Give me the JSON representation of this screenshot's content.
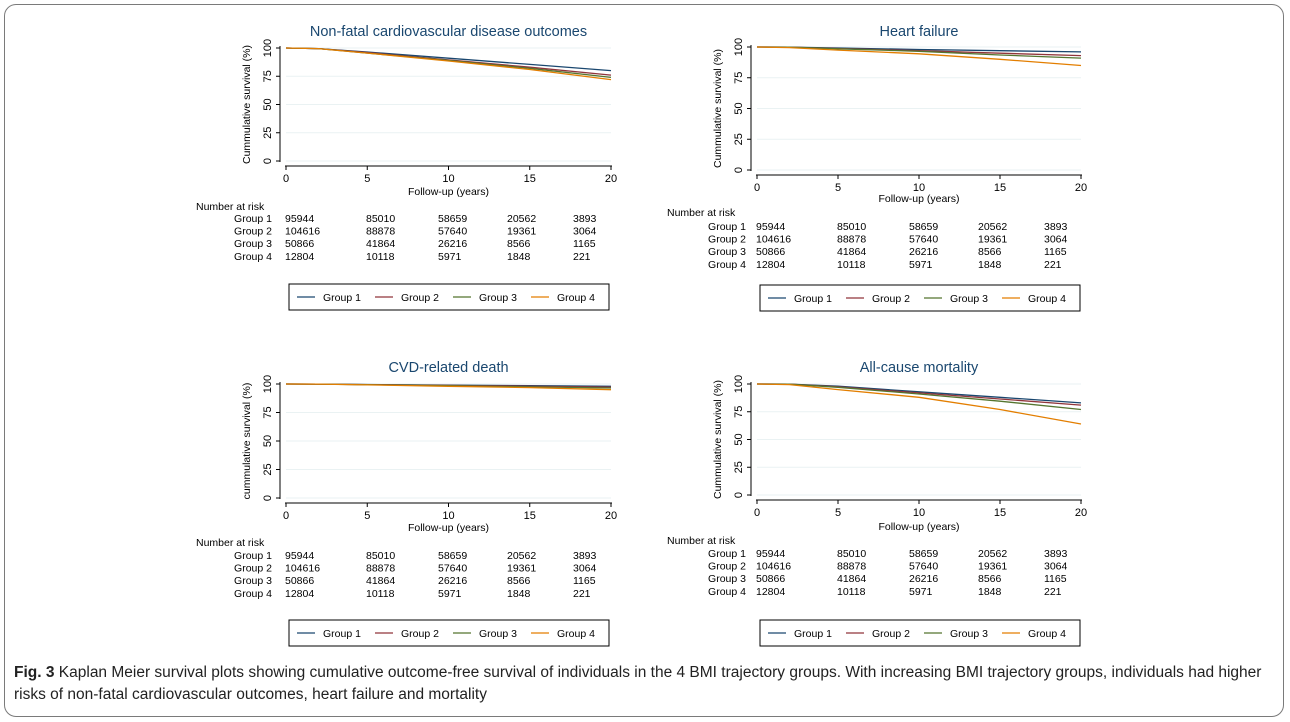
{
  "caption": {
    "label": "Fig. 3",
    "text": " Kaplan Meier survival plots showing cumulative outcome-free survival of individuals in the 4 BMI trajectory groups. With increasing BMI trajectory groups, individuals had higher risks of non-fatal cardiovascular outcomes, heart failure and mortality"
  },
  "colors": {
    "Group 1": "#1a476f",
    "Group 2": "#90353b",
    "Group 3": "#55752f",
    "Group 4": "#e37e00",
    "title": "#1a476f"
  },
  "chart_data": [
    {
      "type": "line",
      "title": "Non-fatal cardiovascular disease outcomes",
      "xlabel": "Follow-up (years)",
      "ylabel": "Cummulative survival (%)",
      "xlim": [
        0,
        20
      ],
      "ylim": [
        0,
        100
      ],
      "xticks": [
        0,
        5,
        10,
        15,
        20
      ],
      "yticks": [
        0,
        25,
        50,
        75,
        100
      ],
      "series": [
        {
          "name": "Group 1",
          "x": [
            0,
            2,
            5,
            10,
            15,
            20
          ],
          "y": [
            100,
            99.5,
            96.5,
            91,
            85.5,
            80
          ]
        },
        {
          "name": "Group 2",
          "x": [
            0,
            2,
            5,
            10,
            15,
            20
          ],
          "y": [
            100,
            99.5,
            96,
            89.5,
            83,
            76
          ]
        },
        {
          "name": "Group 3",
          "x": [
            0,
            2,
            5,
            10,
            15,
            20
          ],
          "y": [
            100,
            99.5,
            95.5,
            89,
            82,
            74
          ]
        },
        {
          "name": "Group 4",
          "x": [
            0,
            2,
            5,
            10,
            15,
            20
          ],
          "y": [
            100,
            99.5,
            95.5,
            88.5,
            81,
            72
          ]
        }
      ],
      "risk_table": {
        "header": "Number at risk",
        "rows": [
          {
            "group": "Group 1",
            "values": [
              "95944",
              "85010",
              "58659",
              "20562",
              "3893"
            ]
          },
          {
            "group": "Group 2",
            "values": [
              "104616",
              "88878",
              "57640",
              "19361",
              "3064"
            ]
          },
          {
            "group": "Group 3",
            "values": [
              "50866",
              "41864",
              "26216",
              "8566",
              "1165"
            ]
          },
          {
            "group": "Group 4",
            "values": [
              "12804",
              "10118",
              "5971",
              "1848",
              "221"
            ]
          }
        ]
      },
      "legend": [
        "Group 1",
        "Group 2",
        "Group 3",
        "Group 4"
      ]
    },
    {
      "type": "line",
      "title": "Heart failure",
      "xlabel": "Follow-up (years)",
      "ylabel": "Cummulative survival (%)",
      "xlim": [
        0,
        20
      ],
      "ylim": [
        0,
        100
      ],
      "xticks": [
        0,
        5,
        10,
        15,
        20
      ],
      "yticks": [
        0,
        25,
        50,
        75,
        100
      ],
      "series": [
        {
          "name": "Group 1",
          "x": [
            0,
            2,
            5,
            10,
            15,
            20
          ],
          "y": [
            100,
            99.8,
            99.2,
            98,
            97,
            96
          ]
        },
        {
          "name": "Group 2",
          "x": [
            0,
            2,
            5,
            10,
            15,
            20
          ],
          "y": [
            100,
            99.8,
            98.8,
            97,
            95,
            93
          ]
        },
        {
          "name": "Group 3",
          "x": [
            0,
            2,
            5,
            10,
            15,
            20
          ],
          "y": [
            100,
            99.8,
            98.5,
            96.5,
            93.5,
            91
          ]
        },
        {
          "name": "Group 4",
          "x": [
            0,
            2,
            5,
            10,
            15,
            20
          ],
          "y": [
            100,
            99.5,
            97.5,
            94.5,
            90,
            85
          ]
        }
      ],
      "risk_table": {
        "header": "Number at risk",
        "rows": [
          {
            "group": "Group 1",
            "values": [
              "95944",
              "85010",
              "58659",
              "20562",
              "3893"
            ]
          },
          {
            "group": "Group 2",
            "values": [
              "104616",
              "88878",
              "57640",
              "19361",
              "3064"
            ]
          },
          {
            "group": "Group 3",
            "values": [
              "50866",
              "41864",
              "26216",
              "8566",
              "1165"
            ]
          },
          {
            "group": "Group 4",
            "values": [
              "12804",
              "10118",
              "5971",
              "1848",
              "221"
            ]
          }
        ]
      },
      "legend": [
        "Group 1",
        "Group 2",
        "Group 3",
        "Group 4"
      ]
    },
    {
      "type": "line",
      "title": "CVD-related death",
      "xlabel": "Follow-up (years)",
      "ylabel": "cummulative survival (%)",
      "xlim": [
        0,
        20
      ],
      "ylim": [
        0,
        100
      ],
      "xticks": [
        0,
        5,
        10,
        15,
        20
      ],
      "yticks": [
        0,
        25,
        50,
        75,
        100
      ],
      "series": [
        {
          "name": "Group 1",
          "x": [
            0,
            2,
            5,
            10,
            15,
            20
          ],
          "y": [
            100,
            99.9,
            99.6,
            99,
            98.5,
            98
          ]
        },
        {
          "name": "Group 2",
          "x": [
            0,
            2,
            5,
            10,
            15,
            20
          ],
          "y": [
            100,
            99.9,
            99.5,
            98.8,
            98,
            97.3
          ]
        },
        {
          "name": "Group 3",
          "x": [
            0,
            2,
            5,
            10,
            15,
            20
          ],
          "y": [
            100,
            99.9,
            99.4,
            98.5,
            97.5,
            96.5
          ]
        },
        {
          "name": "Group 4",
          "x": [
            0,
            2,
            5,
            10,
            15,
            20
          ],
          "y": [
            100,
            99.9,
            99.2,
            98,
            96.8,
            95
          ]
        }
      ],
      "risk_table": {
        "header": "Number at risk",
        "rows": [
          {
            "group": "Group 1",
            "values": [
              "95944",
              "85010",
              "58659",
              "20562",
              "3893"
            ]
          },
          {
            "group": "Group 2",
            "values": [
              "104616",
              "88878",
              "57640",
              "19361",
              "3064"
            ]
          },
          {
            "group": "Group 3",
            "values": [
              "50866",
              "41864",
              "26216",
              "8566",
              "1165"
            ]
          },
          {
            "group": "Group 4",
            "values": [
              "12804",
              "10118",
              "5971",
              "1848",
              "221"
            ]
          }
        ]
      },
      "legend": [
        "Group 1",
        "Group 2",
        "Group 3",
        "Group 4"
      ]
    },
    {
      "type": "line",
      "title": "All-cause mortality",
      "xlabel": "Follow-up (years)",
      "ylabel": "Cummulative survival (%)",
      "xlim": [
        0,
        20
      ],
      "ylim": [
        0,
        100
      ],
      "xticks": [
        0,
        5,
        10,
        15,
        20
      ],
      "yticks": [
        0,
        25,
        50,
        75,
        100
      ],
      "series": [
        {
          "name": "Group 1",
          "x": [
            0,
            2,
            5,
            10,
            15,
            20
          ],
          "y": [
            100,
            99.8,
            98,
            93,
            88,
            83
          ]
        },
        {
          "name": "Group 2",
          "x": [
            0,
            2,
            5,
            10,
            15,
            20
          ],
          "y": [
            100,
            99.8,
            97.5,
            92,
            86.5,
            81
          ]
        },
        {
          "name": "Group 3",
          "x": [
            0,
            2,
            5,
            10,
            15,
            20
          ],
          "y": [
            100,
            99.8,
            97,
            91,
            84.5,
            77
          ]
        },
        {
          "name": "Group 4",
          "x": [
            0,
            2,
            5,
            10,
            15,
            20
          ],
          "y": [
            100,
            99.5,
            95,
            88,
            77,
            64
          ]
        }
      ],
      "risk_table": {
        "header": "Number at risk",
        "rows": [
          {
            "group": "Group 1",
            "values": [
              "95944",
              "85010",
              "58659",
              "20562",
              "3893"
            ]
          },
          {
            "group": "Group 2",
            "values": [
              "104616",
              "88878",
              "57640",
              "19361",
              "3064"
            ]
          },
          {
            "group": "Group 3",
            "values": [
              "50866",
              "41864",
              "26216",
              "8566",
              "1165"
            ]
          },
          {
            "group": "Group 4",
            "values": [
              "12804",
              "10118",
              "5971",
              "1848",
              "221"
            ]
          }
        ]
      },
      "legend": [
        "Group 1",
        "Group 2",
        "Group 3",
        "Group 4"
      ]
    }
  ]
}
